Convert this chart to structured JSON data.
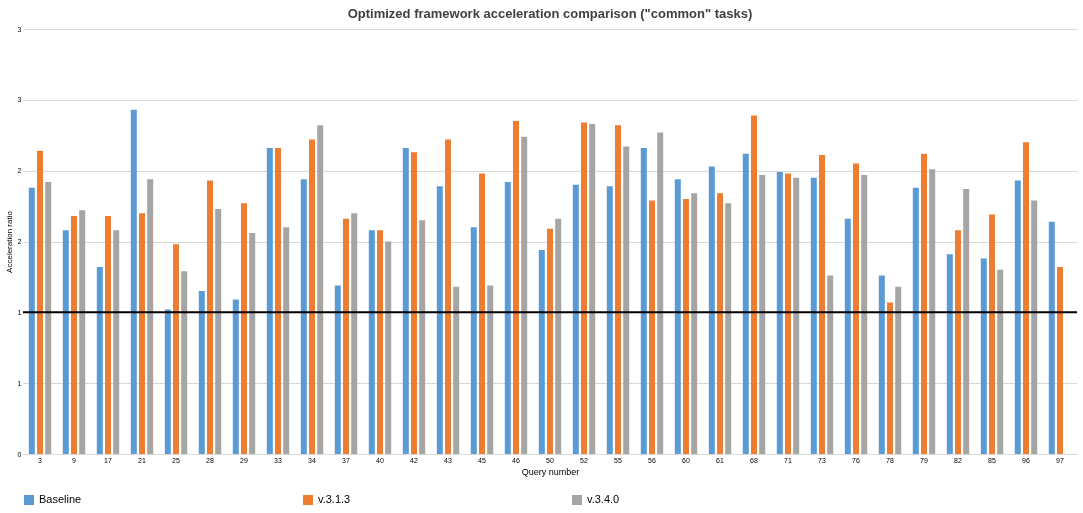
{
  "chart_data": {
    "type": "bar",
    "title": "Optimized framework acceleration comparison (\"common\" tasks)",
    "xlabel": "Query number",
    "ylabel": "Acceleration ratio",
    "categories": [
      "3",
      "9",
      "17",
      "21",
      "25",
      "28",
      "29",
      "33",
      "34",
      "37",
      "40",
      "42",
      "43",
      "45",
      "46",
      "50",
      "52",
      "55",
      "56",
      "60",
      "61",
      "68",
      "71",
      "73",
      "76",
      "78",
      "79",
      "82",
      "85",
      "96",
      "97"
    ],
    "series": [
      {
        "name": "Baseline",
        "color": "#5b9bd5",
        "values": [
          1.88,
          1.58,
          1.32,
          2.43,
          1.02,
          1.15,
          1.09,
          2.16,
          1.94,
          1.19,
          1.58,
          2.16,
          1.89,
          1.6,
          1.92,
          1.44,
          1.9,
          1.89,
          2.16,
          1.94,
          2.03,
          2.12,
          1.99,
          1.95,
          1.66,
          1.26,
          1.88,
          1.41,
          1.38,
          1.93,
          1.64
        ]
      },
      {
        "name": "v.3.1.3",
        "color": "#ed7d31",
        "values": [
          2.14,
          1.68,
          1.68,
          1.7,
          1.48,
          1.93,
          1.77,
          2.16,
          2.22,
          1.66,
          1.58,
          2.13,
          2.22,
          1.98,
          2.35,
          1.59,
          2.34,
          2.32,
          1.79,
          1.8,
          1.84,
          2.39,
          1.98,
          2.11,
          2.05,
          1.07,
          2.12,
          1.58,
          1.69,
          2.2,
          1.32
        ]
      },
      {
        "name": "v.3.4.0",
        "color": "#a5a5a5",
        "values": [
          1.92,
          1.72,
          1.58,
          1.94,
          1.29,
          1.73,
          1.56,
          1.6,
          2.32,
          1.7,
          1.5,
          1.65,
          1.18,
          1.19,
          2.24,
          1.66,
          2.33,
          2.17,
          2.27,
          1.84,
          1.77,
          1.97,
          1.95,
          1.26,
          1.97,
          1.18,
          2.01,
          1.87,
          1.3,
          1.79,
          null
        ]
      }
    ],
    "ylim": [
      0,
      3
    ],
    "yticks": [
      0,
      {
        "value": 0.5,
        "label": "1"
      },
      1,
      {
        "value": 1.5,
        "label": "2"
      },
      2,
      {
        "value": 2.5,
        "label": "3"
      },
      3
    ],
    "ref_lines": [
      {
        "axis": "y",
        "value": 1,
        "color": "#000000"
      }
    ],
    "grid": "y",
    "legend": "bottom"
  }
}
